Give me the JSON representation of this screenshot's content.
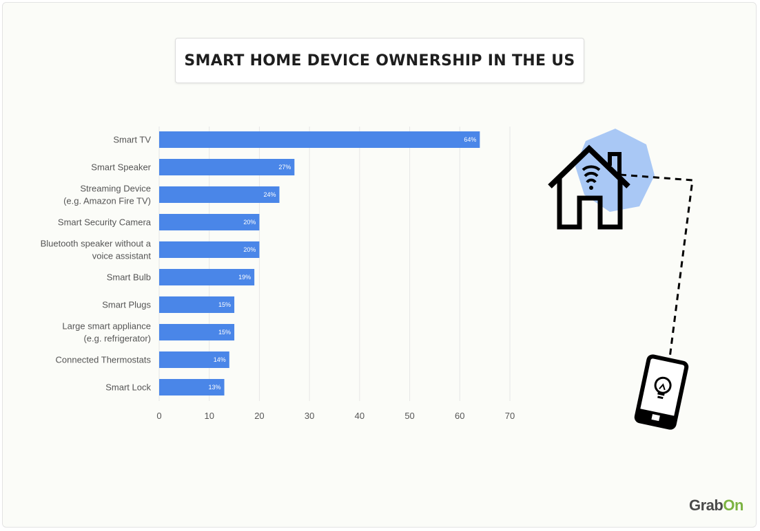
{
  "title": "SMART HOME DEVICE OWNERSHIP IN THE US",
  "logo": {
    "part1": "Grab",
    "part2": "On",
    "color1": "#4a4a4a",
    "color2": "#7cb342"
  },
  "colors": {
    "bar": "#4a86e8",
    "grid": "#e6e6e6",
    "accent_shape": "#a9c8f5"
  },
  "icons": [
    "smart-home-wifi-icon",
    "smartphone-lightbulb-icon"
  ],
  "chart_data": {
    "type": "bar",
    "orientation": "horizontal",
    "categories": [
      [
        "Smart TV"
      ],
      [
        "Smart Speaker"
      ],
      [
        "Streaming Device",
        "(e.g. Amazon Fire TV)"
      ],
      [
        "Smart Security Camera"
      ],
      [
        "Bluetooth speaker without a",
        "voice assistant"
      ],
      [
        "Smart Bulb"
      ],
      [
        "Smart Plugs"
      ],
      [
        "Large smart appliance",
        "(e.g. refrigerator)"
      ],
      [
        "Connected Thermostats"
      ],
      [
        "Smart Lock"
      ]
    ],
    "values": [
      64,
      27,
      24,
      20,
      20,
      19,
      15,
      15,
      14,
      13
    ],
    "data_labels": [
      "64%",
      "27%",
      "24%",
      "20%",
      "20%",
      "19%",
      "15%",
      "15%",
      "14%",
      "13%"
    ],
    "xticks": [
      0,
      10,
      20,
      30,
      40,
      50,
      60,
      70
    ],
    "xlim": [
      0,
      70
    ],
    "grid": true,
    "title": "SMART HOME DEVICE OWNERSHIP IN THE US",
    "xlabel": "",
    "ylabel": ""
  }
}
